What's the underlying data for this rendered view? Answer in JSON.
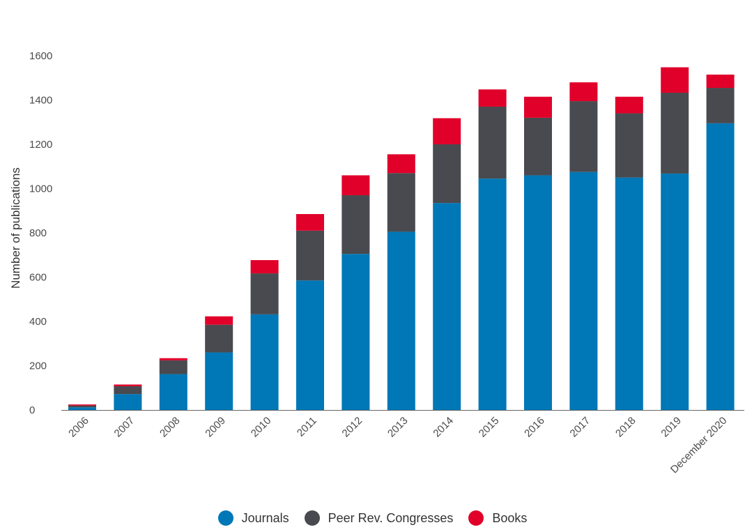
{
  "chart_data": {
    "type": "bar",
    "stacked": true,
    "categories": [
      "2006",
      "2007",
      "2008",
      "2009",
      "2010",
      "2011",
      "2012",
      "2013",
      "2014",
      "2015",
      "2016",
      "2017",
      "2018",
      "2019",
      "December 2020"
    ],
    "series": [
      {
        "name": "Journals",
        "color": "#0077b6",
        "values": [
          12,
          72,
          162,
          260,
          432,
          585,
          705,
          805,
          935,
          1045,
          1060,
          1075,
          1050,
          1068,
          1295
        ]
      },
      {
        "name": "Peer Rev. Congresses",
        "color": "#484a4f",
        "values": [
          8,
          35,
          62,
          125,
          185,
          225,
          265,
          265,
          265,
          325,
          260,
          320,
          290,
          365,
          160
        ]
      },
      {
        "name": "Books",
        "color": "#e0002a",
        "values": [
          5,
          8,
          10,
          38,
          60,
          75,
          90,
          85,
          118,
          78,
          95,
          85,
          75,
          115,
          60
        ]
      }
    ],
    "title": "",
    "xlabel": "",
    "ylabel": "Number of publications",
    "ylim": [
      0,
      1600
    ],
    "yticks": [
      0,
      200,
      400,
      600,
      800,
      1000,
      1200,
      1400,
      1600
    ],
    "grid": false,
    "legend_position": "bottom"
  }
}
